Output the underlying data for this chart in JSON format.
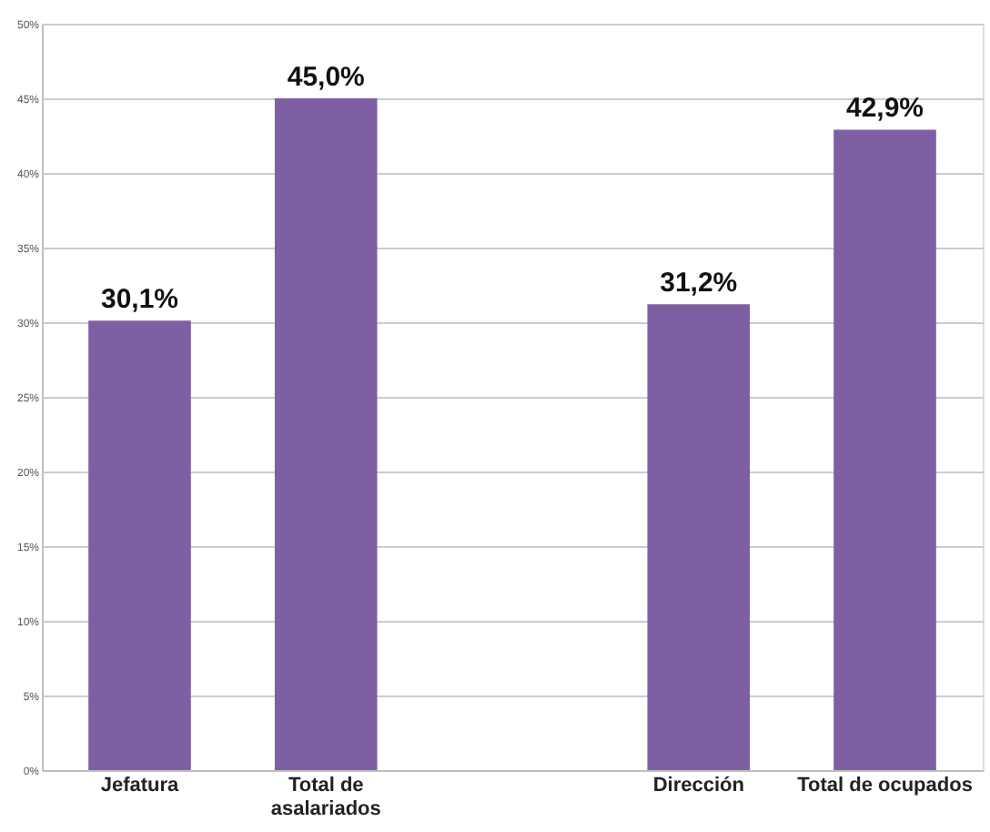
{
  "chart_data": {
    "type": "bar",
    "categories": [
      "Jefatura",
      "Total de asalariados",
      null,
      "Dirección",
      "Total de ocupados"
    ],
    "values": [
      30.1,
      45.0,
      null,
      31.2,
      42.9
    ],
    "value_labels": [
      "30,1%",
      "45,0%",
      null,
      "31,2%",
      "42,9%"
    ],
    "color": "#7f5fa3",
    "ylim": [
      0,
      50
    ],
    "yticks": [
      {
        "value": 0,
        "label": "0%"
      },
      {
        "value": 5,
        "label": "5%"
      },
      {
        "value": 10,
        "label": "10%"
      },
      {
        "value": 15,
        "label": "15%"
      },
      {
        "value": 20,
        "label": "20%"
      },
      {
        "value": 25,
        "label": "25%"
      },
      {
        "value": 30,
        "label": "30%"
      },
      {
        "value": 35,
        "label": "35%"
      },
      {
        "value": 40,
        "label": "40%"
      },
      {
        "value": 45,
        "label": "45%"
      },
      {
        "value": 50,
        "label": "50%"
      }
    ],
    "grid": "y"
  }
}
